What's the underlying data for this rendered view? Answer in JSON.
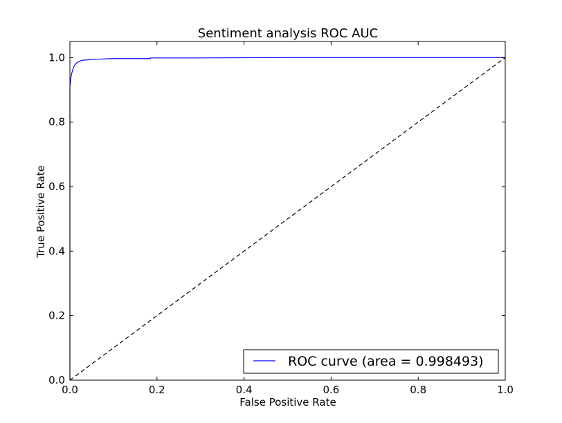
{
  "chart_data": {
    "type": "line",
    "title": "Sentiment analysis ROC AUC",
    "xlabel": "False Positive Rate",
    "ylabel": "True Positive Rate",
    "xlim": [
      0.0,
      1.0
    ],
    "ylim": [
      0.0,
      1.05
    ],
    "x_ticks": [
      "0.0",
      "0.2",
      "0.4",
      "0.6",
      "0.8",
      "1.0"
    ],
    "y_ticks": [
      "0.0",
      "0.2",
      "0.4",
      "0.6",
      "0.8",
      "1.0"
    ],
    "grid": false,
    "legend_position": "lower-right",
    "series": [
      {
        "name": "ROC curve (area = 0.998493)",
        "color": "#0000ff",
        "style": "solid",
        "x": [
          0.0,
          0.0,
          0.002,
          0.004,
          0.006,
          0.008,
          0.01,
          0.013,
          0.016,
          0.02,
          0.025,
          0.03,
          0.04,
          0.05,
          0.06,
          0.08,
          0.1,
          0.13,
          0.185,
          0.185,
          0.3,
          0.5,
          0.7,
          1.0
        ],
        "y": [
          0.0,
          0.91,
          0.935,
          0.95,
          0.96,
          0.968,
          0.975,
          0.98,
          0.984,
          0.987,
          0.99,
          0.992,
          0.993,
          0.994,
          0.995,
          0.996,
          0.997,
          0.997,
          0.997,
          0.999,
          0.999,
          1.0,
          1.0,
          1.0
        ]
      },
      {
        "color": "#000000",
        "style": "dashed",
        "x": [
          0.0,
          1.0
        ],
        "y": [
          0.0,
          1.0
        ]
      }
    ]
  }
}
